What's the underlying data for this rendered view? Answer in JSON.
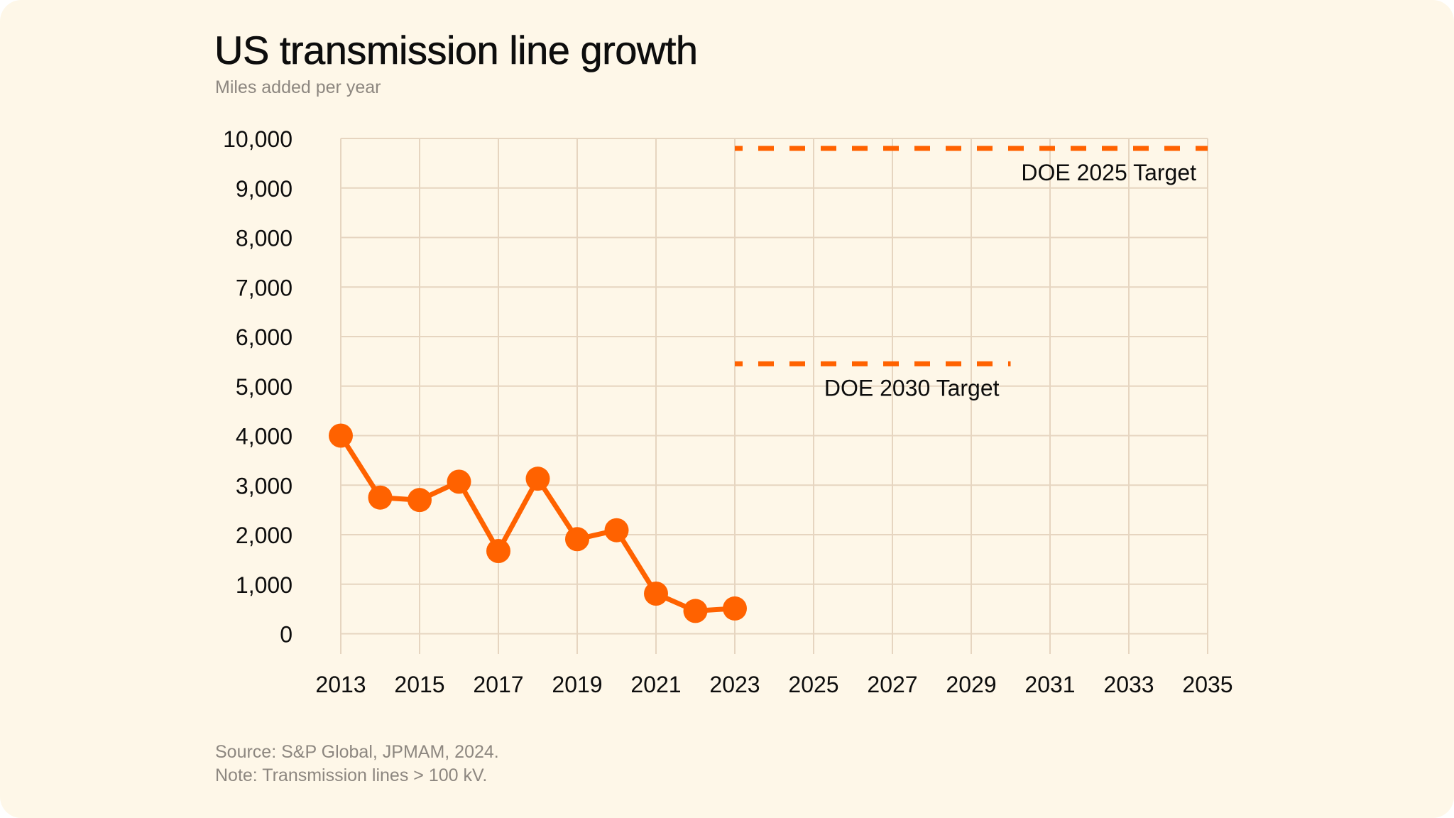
{
  "header": {
    "title": "US transmission line growth",
    "subtitle": "Miles added per year"
  },
  "footer": {
    "source": "Source: S&P Global, JPMAM, 2024.",
    "note": "Note: Transmission lines > 100 kV."
  },
  "colors": {
    "background": "#FEF7E8",
    "accent": "#FF6200",
    "grid": "#E6D5C0",
    "text": "#0D0D0D",
    "muted_text": "#8D8780"
  },
  "chart_data": {
    "type": "line",
    "title": "US transmission line growth",
    "subtitle": "Miles added per year",
    "xlabel": "",
    "ylabel": "Miles added per year",
    "xlim": [
      2013,
      2035
    ],
    "ylim": [
      0,
      10000
    ],
    "grid": true,
    "x_ticks": [
      2013,
      2015,
      2017,
      2019,
      2021,
      2023,
      2025,
      2027,
      2029,
      2031,
      2033,
      2035
    ],
    "x_tick_labels": [
      "2013",
      "2015",
      "2017",
      "2019",
      "2021",
      "2023",
      "2025",
      "2027",
      "2029",
      "2031",
      "2033",
      "2035"
    ],
    "x_grid_step": 2,
    "y_ticks": [
      0,
      1000,
      2000,
      3000,
      4000,
      5000,
      6000,
      7000,
      8000,
      9000,
      10000
    ],
    "y_tick_labels": [
      "0",
      "1,000",
      "2,000",
      "3,000",
      "4,000",
      "5,000",
      "6,000",
      "7,000",
      "8,000",
      "9,000",
      "10,000"
    ],
    "series": [
      {
        "name": "Miles added per year",
        "style": "line-with-markers",
        "x": [
          2013,
          2014,
          2015,
          2016,
          2017,
          2018,
          2019,
          2020,
          2021,
          2022,
          2023
        ],
        "values": [
          4000,
          2750,
          2700,
          3070,
          1670,
          3130,
          1910,
          2090,
          810,
          460,
          510
        ]
      }
    ],
    "reference_lines": [
      {
        "name": "DOE 2025 Target",
        "label": "DOE 2025 Target",
        "style": "dashed",
        "value": 9800,
        "x_start": 2023,
        "x_end": 2035
      },
      {
        "name": "DOE 2030 Target",
        "label": "DOE 2030 Target",
        "style": "dashed",
        "value": 5450,
        "x_start": 2023,
        "x_end": 2030
      }
    ],
    "legend": "none"
  }
}
